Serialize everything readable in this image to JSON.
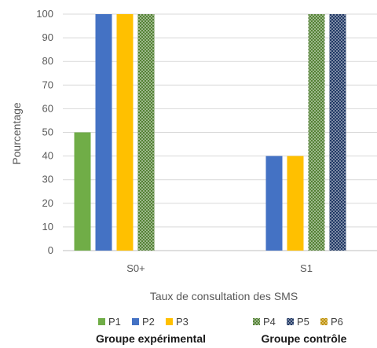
{
  "chart_data": {
    "type": "bar",
    "title": "",
    "xlabel": "Taux de consultation des SMS",
    "ylabel": "Pourcentage",
    "ylim": [
      0,
      100
    ],
    "yticks": [
      0,
      10,
      20,
      30,
      40,
      50,
      60,
      70,
      80,
      90,
      100
    ],
    "grid": true,
    "legend_position": "bottom",
    "categories": [
      "S0+",
      "S1"
    ],
    "series": [
      {
        "name": "P1",
        "values": [
          50,
          0
        ],
        "color": "#70ad47",
        "pattern": "solid"
      },
      {
        "name": "P2",
        "values": [
          100,
          40
        ],
        "color": "#4472c4",
        "pattern": "solid"
      },
      {
        "name": "P3",
        "values": [
          100,
          40
        ],
        "color": "#ffc000",
        "pattern": "solid"
      },
      {
        "name": "P4",
        "values": [
          100,
          100
        ],
        "color": "#548235",
        "pattern": "dots"
      },
      {
        "name": "P5",
        "values": [
          0,
          100
        ],
        "color": "#203864",
        "pattern": "dots"
      },
      {
        "name": "P6",
        "values": [
          0,
          0
        ],
        "color": "#bf9000",
        "pattern": "dots"
      }
    ],
    "legend_groups": [
      {
        "title": "Groupe expérimental",
        "members": [
          "P1",
          "P2",
          "P3"
        ]
      },
      {
        "title": "Groupe contrôle",
        "members": [
          "P4",
          "P5",
          "P6"
        ]
      }
    ]
  }
}
